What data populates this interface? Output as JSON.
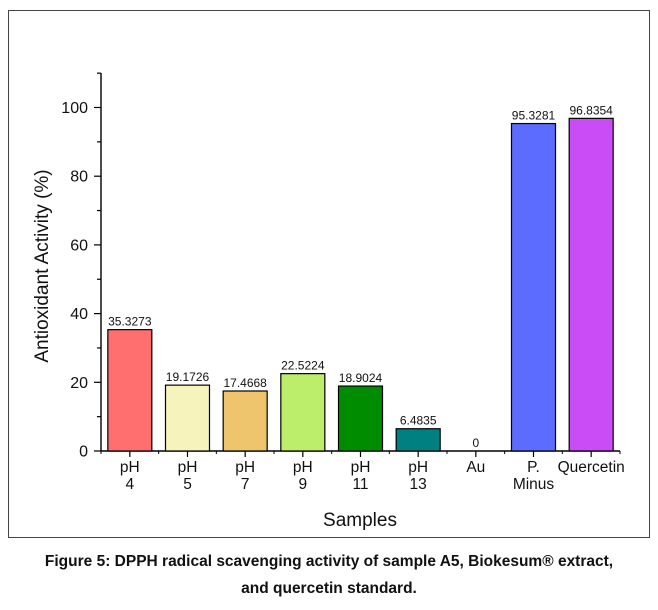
{
  "chart_data": {
    "type": "bar",
    "xlabel": "Samples",
    "ylabel": "Antioxidant Activity (%)",
    "ylim": [
      0,
      110
    ],
    "yticks": [
      0,
      20,
      40,
      60,
      80,
      100
    ],
    "categories": [
      [
        "pH",
        "4"
      ],
      [
        "pH",
        "5"
      ],
      [
        "pH",
        "7"
      ],
      [
        "pH",
        "9"
      ],
      [
        "pH",
        "11"
      ],
      [
        "pH",
        "13"
      ],
      [
        "Au"
      ],
      [
        "P.",
        "Minus"
      ],
      [
        "Quercetin"
      ]
    ],
    "values": [
      35.3273,
      19.1726,
      17.4668,
      22.5224,
      18.9024,
      6.4835,
      0,
      95.3281,
      96.8354
    ],
    "labels": [
      "35.3273",
      "19.1726",
      "17.4668",
      "22.5224",
      "18.9024",
      "6.4835",
      "0",
      "95.3281",
      "96.8354"
    ],
    "colors": [
      "#ff6f6f",
      "#f6f3bd",
      "#eec46c",
      "#bcee6c",
      "#008c00",
      "#008080",
      "#cccccc",
      "#5c6cff",
      "#c94cf6"
    ],
    "grid": false,
    "legend": "none"
  },
  "caption": {
    "line1": "Figure 5: DPPH radical scavenging activity of sample A5, Biokesum® extract,",
    "line2": "and quercetin standard."
  }
}
